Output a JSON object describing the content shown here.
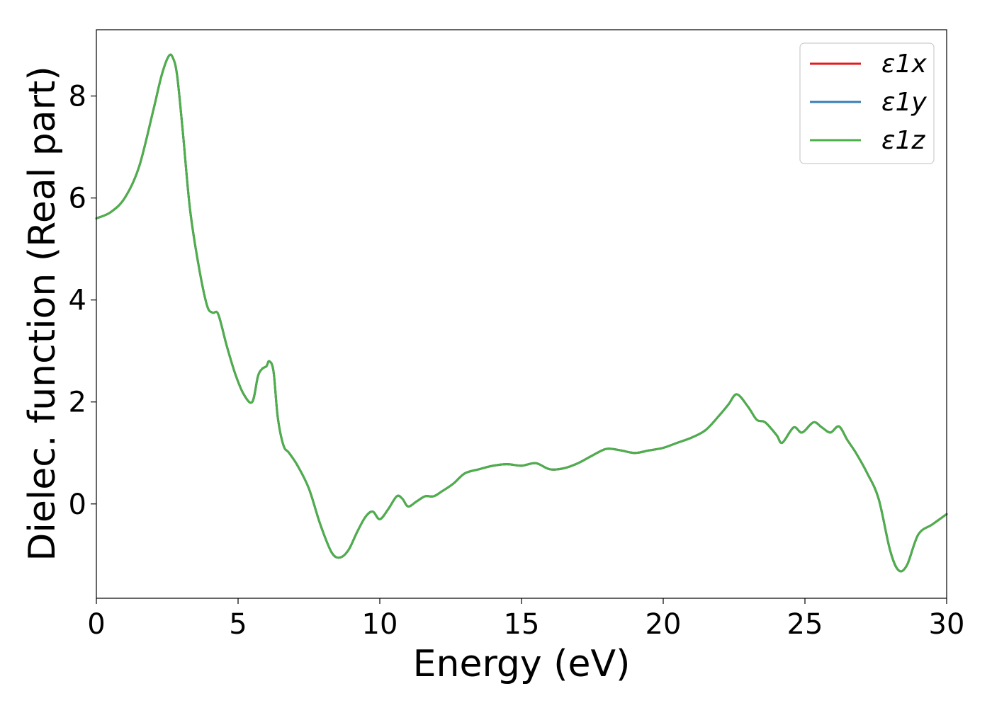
{
  "chart_data": {
    "type": "line",
    "title": "",
    "xlabel": "Energy (eV)",
    "ylabel": "Dielec. function (Real part)",
    "xlim": [
      0,
      30
    ],
    "ylim": [
      -1.85,
      9.3
    ],
    "xticks": [
      0,
      5,
      10,
      15,
      20,
      25,
      30
    ],
    "yticks": [
      0,
      2,
      4,
      6,
      8
    ],
    "xtick_labels": [
      "0",
      "5",
      "10",
      "15",
      "20",
      "25",
      "30"
    ],
    "ytick_labels": [
      "0",
      "2",
      "4",
      "6",
      "8"
    ],
    "grid": false,
    "legend_position": "top-right",
    "x": [
      0,
      0.5,
      1,
      1.5,
      2,
      2.3,
      2.55,
      2.7,
      2.85,
      3.05,
      3.3,
      3.6,
      3.9,
      4.1,
      4.3,
      4.6,
      4.9,
      5.2,
      5.5,
      5.7,
      5.85,
      6,
      6.1,
      6.25,
      6.4,
      6.6,
      6.8,
      7.1,
      7.5,
      7.9,
      8.3,
      8.6,
      8.9,
      9.2,
      9.5,
      9.75,
      10,
      10.3,
      10.6,
      10.8,
      11,
      11.3,
      11.6,
      11.9,
      12.2,
      12.6,
      13,
      13.5,
      14,
      14.5,
      15,
      15.5,
      16,
      16.5,
      17,
      17.5,
      18,
      18.5,
      19,
      19.5,
      20,
      20.5,
      21,
      21.5,
      22,
      22.3,
      22.6,
      23,
      23.3,
      23.6,
      24,
      24.2,
      24.6,
      24.9,
      25.3,
      25.6,
      25.9,
      26.2,
      26.5,
      26.8,
      27.2,
      27.6,
      28,
      28.3,
      28.6,
      29,
      29.5,
      30
    ],
    "series": [
      {
        "name": "ε1x",
        "color": "#e41a1c",
        "values": [
          5.6,
          5.72,
          6,
          6.6,
          7.7,
          8.4,
          8.78,
          8.75,
          8.4,
          7.3,
          5.8,
          4.7,
          3.9,
          3.75,
          3.72,
          3.1,
          2.55,
          2.15,
          2.0,
          2.5,
          2.65,
          2.7,
          2.8,
          2.6,
          1.7,
          1.15,
          1.0,
          0.75,
          0.3,
          -0.4,
          -0.95,
          -1.05,
          -0.9,
          -0.55,
          -0.25,
          -0.15,
          -0.3,
          -0.1,
          0.15,
          0.1,
          -0.05,
          0.05,
          0.15,
          0.15,
          0.25,
          0.4,
          0.6,
          0.68,
          0.75,
          0.78,
          0.75,
          0.8,
          0.68,
          0.7,
          0.8,
          0.95,
          1.08,
          1.05,
          1.0,
          1.05,
          1.1,
          1.2,
          1.3,
          1.45,
          1.75,
          1.95,
          2.15,
          1.9,
          1.65,
          1.6,
          1.35,
          1.2,
          1.5,
          1.4,
          1.6,
          1.5,
          1.4,
          1.52,
          1.25,
          1.0,
          0.6,
          0.1,
          -0.9,
          -1.3,
          -1.2,
          -0.6,
          -0.4,
          -0.2
        ]
      },
      {
        "name": "ε1y",
        "color": "#377eb8",
        "values": [
          5.6,
          5.72,
          6,
          6.6,
          7.7,
          8.4,
          8.78,
          8.75,
          8.4,
          7.3,
          5.8,
          4.7,
          3.9,
          3.75,
          3.72,
          3.1,
          2.55,
          2.15,
          2.0,
          2.5,
          2.65,
          2.7,
          2.8,
          2.6,
          1.7,
          1.15,
          1.0,
          0.75,
          0.3,
          -0.4,
          -0.95,
          -1.05,
          -0.9,
          -0.55,
          -0.25,
          -0.15,
          -0.3,
          -0.1,
          0.15,
          0.1,
          -0.05,
          0.05,
          0.15,
          0.15,
          0.25,
          0.4,
          0.6,
          0.68,
          0.75,
          0.78,
          0.75,
          0.8,
          0.68,
          0.7,
          0.8,
          0.95,
          1.08,
          1.05,
          1.0,
          1.05,
          1.1,
          1.2,
          1.3,
          1.45,
          1.75,
          1.95,
          2.15,
          1.9,
          1.65,
          1.6,
          1.35,
          1.2,
          1.5,
          1.4,
          1.6,
          1.5,
          1.4,
          1.52,
          1.25,
          1.0,
          0.6,
          0.1,
          -0.9,
          -1.3,
          -1.2,
          -0.6,
          -0.4,
          -0.2
        ]
      },
      {
        "name": "ε1z",
        "color": "#4daf4a",
        "values": [
          5.6,
          5.72,
          6,
          6.6,
          7.7,
          8.4,
          8.78,
          8.75,
          8.4,
          7.3,
          5.8,
          4.7,
          3.9,
          3.75,
          3.72,
          3.1,
          2.55,
          2.15,
          2.0,
          2.5,
          2.65,
          2.7,
          2.8,
          2.6,
          1.7,
          1.15,
          1.0,
          0.75,
          0.3,
          -0.4,
          -0.95,
          -1.05,
          -0.9,
          -0.55,
          -0.25,
          -0.15,
          -0.3,
          -0.1,
          0.15,
          0.1,
          -0.05,
          0.05,
          0.15,
          0.15,
          0.25,
          0.4,
          0.6,
          0.68,
          0.75,
          0.78,
          0.75,
          0.8,
          0.68,
          0.7,
          0.8,
          0.95,
          1.08,
          1.05,
          1.0,
          1.05,
          1.1,
          1.2,
          1.3,
          1.45,
          1.75,
          1.95,
          2.15,
          1.9,
          1.65,
          1.6,
          1.35,
          1.2,
          1.5,
          1.4,
          1.6,
          1.5,
          1.4,
          1.52,
          1.25,
          1.0,
          0.6,
          0.1,
          -0.9,
          -1.3,
          -1.2,
          -0.6,
          -0.4,
          -0.2
        ]
      }
    ]
  }
}
